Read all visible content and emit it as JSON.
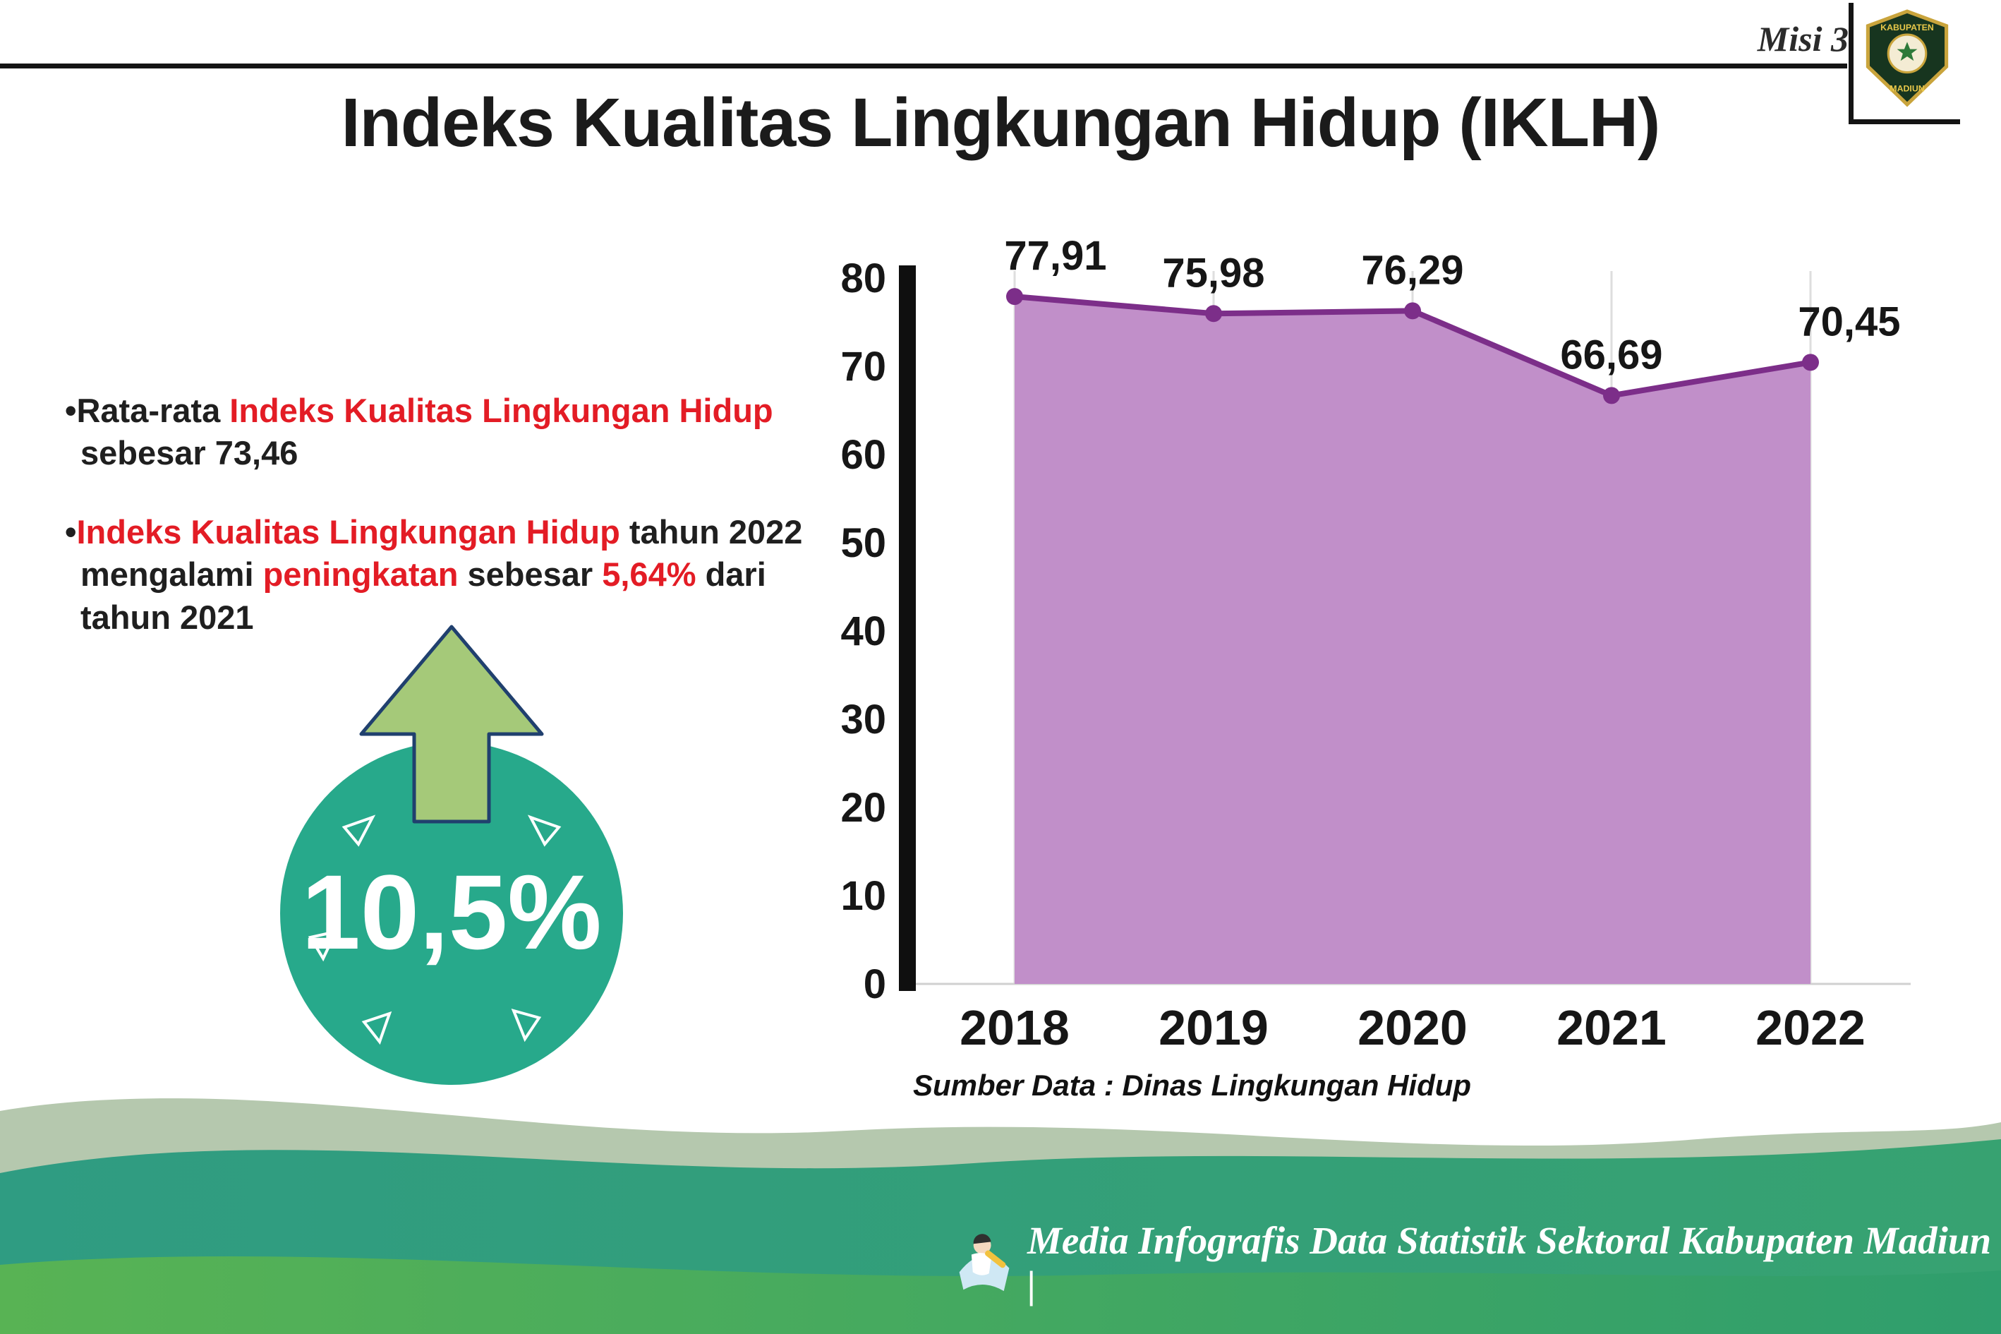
{
  "header": {
    "misi_label": "Misi 3"
  },
  "logo": {
    "top_text": "KABUPATEN",
    "bottom_text": "MADIUN"
  },
  "title": "Indeks Kualitas Lingkungan Hidup (IKLH)",
  "bullets": {
    "marker": "•",
    "b1": {
      "s0": "Rata-rata ",
      "s1": "Indeks Kualitas Lingkungan Hidup",
      "s2": " sebesar 73,46"
    },
    "b2": {
      "s0": "Indeks Kualitas Lingkungan Hidup",
      "s1": " tahun 2022 mengalami ",
      "s2": "peningkatan",
      "s3": " sebesar ",
      "s4": "5,64%",
      "s5": " dari tahun 2021"
    }
  },
  "badge": {
    "value": "10,5%"
  },
  "chart_data": {
    "type": "area",
    "title": "",
    "categories": [
      "2018",
      "2019",
      "2020",
      "2021",
      "2022"
    ],
    "values": [
      77.91,
      75.98,
      76.29,
      66.69,
      70.45
    ],
    "point_labels": [
      "77,91",
      "75,98",
      "76,29",
      "66,69",
      "70,45"
    ],
    "ylim": [
      0,
      80
    ],
    "yticks": [
      0,
      10,
      20,
      30,
      40,
      50,
      60,
      70,
      80
    ],
    "grid": "vertical-only",
    "legend": "none",
    "xlabel": "",
    "ylabel": "",
    "source": "Sumber Data : Dinas Lingkungan Hidup",
    "colors": {
      "area_fill": "#c18fc9",
      "line": "#7c2e89",
      "point": "#7c2e89",
      "label": "#161616"
    }
  },
  "footer": {
    "credit": "Media Infografis Data Statistik Sektoral Kabupaten Madiun |"
  },
  "colors": {
    "accent_red": "#e31c25",
    "badge_teal": "#27a98b",
    "arrow_green": "#a5c979",
    "footer_sage": "#b5c8ae",
    "footer_teal": "#2f9c82",
    "footer_green": "#58b354"
  }
}
